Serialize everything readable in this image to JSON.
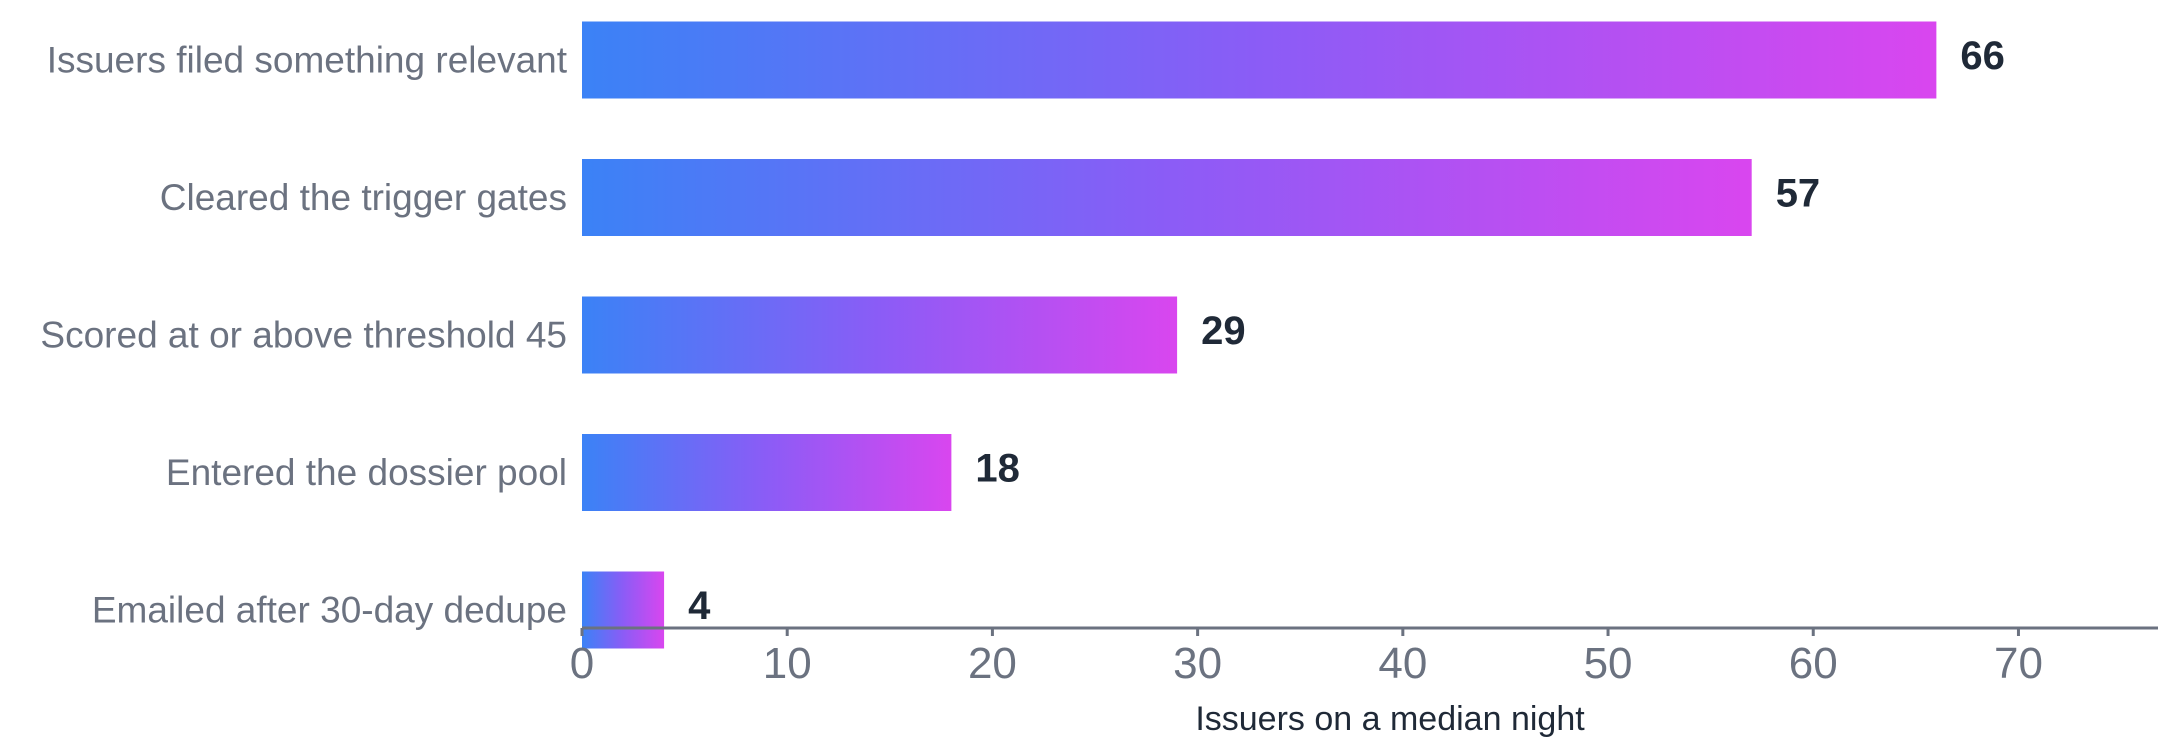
{
  "chart_data": {
    "type": "bar",
    "orientation": "horizontal",
    "categories": [
      "Issuers filed something relevant",
      "Cleared the trigger gates",
      "Scored at or above threshold 45",
      "Entered the dossier pool",
      "Emailed after 30-day dedupe"
    ],
    "values": [
      66,
      57,
      29,
      18,
      4
    ],
    "value_labels": [
      "66",
      "57",
      "29",
      "18",
      "4"
    ],
    "title": "",
    "xlabel": "Issuers on a median night",
    "ylabel": "",
    "xlim": [
      0,
      76.8
    ],
    "xticks": [
      0,
      10,
      20,
      30,
      40,
      50,
      60,
      70
    ],
    "xtick_labels": [
      "0",
      "10",
      "20",
      "30",
      "40",
      "50",
      "60",
      "70"
    ],
    "grid": false,
    "legend": "none",
    "colors": {
      "bar_gradient_start": "#3b82f6",
      "bar_gradient_mid": "#8b5cf6",
      "bar_gradient_end": "#d946ef",
      "category_text": "#6b7280",
      "value_text": "#1f2937",
      "axis": "#6b7280"
    }
  }
}
